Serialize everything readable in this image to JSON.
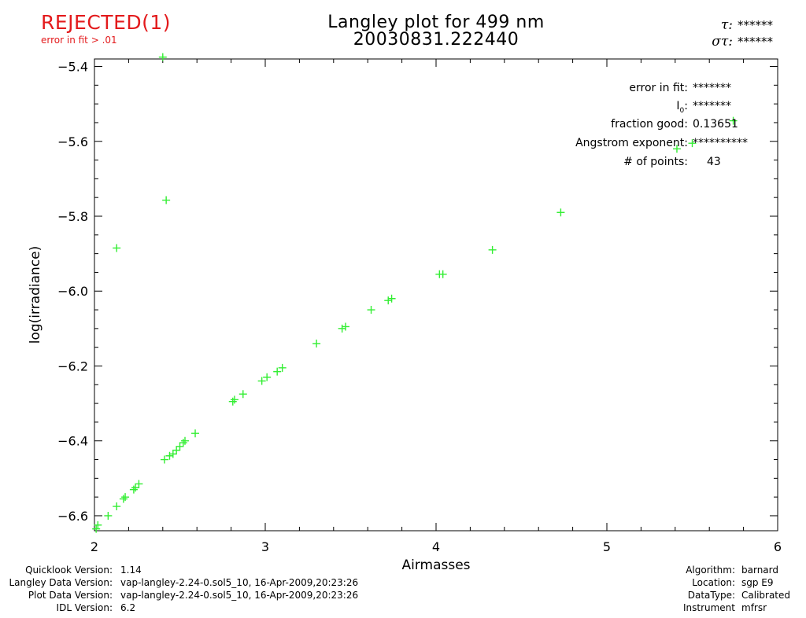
{
  "status": {
    "label": "REJECTED(1)",
    "reason": "error in fit > .01",
    "color": "#e31a1c"
  },
  "title": {
    "line1": "Langley plot for 499 nm",
    "line2": "20030831.222440"
  },
  "tau": {
    "tau_symbol": "τ:",
    "tau_value": "******",
    "sigma_symbol": "στ:",
    "sigma_value": "******"
  },
  "stats": [
    {
      "label": "error in fit:",
      "value": "*******"
    },
    {
      "label": "I0:",
      "value": "*******"
    },
    {
      "label": "fraction good:",
      "value": "0.13651"
    },
    {
      "label": "Angstrom exponent:",
      "value": "**********"
    },
    {
      "label": "# of points:",
      "value": "43"
    }
  ],
  "chart_data": {
    "type": "scatter",
    "title": "Langley plot for 499 nm",
    "subtitle": "20030831.222440",
    "xlabel": "Airmasses",
    "ylabel": "log(irradiance)",
    "xlim": [
      2,
      6
    ],
    "ylim": [
      -6.64,
      -5.38
    ],
    "x_ticks": [
      2,
      3,
      4,
      5,
      6
    ],
    "x_tick_labels": [
      "2",
      "3",
      "4",
      "5",
      "6"
    ],
    "y_ticks": [
      -6.6,
      -6.4,
      -6.2,
      -6.0,
      -5.8,
      -5.6,
      -5.4
    ],
    "y_tick_labels": [
      "−6.6",
      "−6.4",
      "−6.2",
      "−6.0",
      "−5.8",
      "−5.6",
      "−5.4"
    ],
    "marker": "+",
    "marker_color": "#33ee33",
    "grid": false,
    "series": [
      {
        "points": [
          [
            2.01,
            -6.635
          ],
          [
            2.02,
            -6.625
          ],
          [
            2.08,
            -6.6
          ],
          [
            2.13,
            -6.575
          ],
          [
            2.17,
            -6.555
          ],
          [
            2.18,
            -6.55
          ],
          [
            2.23,
            -6.53
          ],
          [
            2.24,
            -6.525
          ],
          [
            2.26,
            -6.515
          ],
          [
            2.13,
            -5.885
          ],
          [
            2.4,
            -5.375
          ],
          [
            2.41,
            -6.45
          ],
          [
            2.44,
            -6.44
          ],
          [
            2.46,
            -6.435
          ],
          [
            2.48,
            -6.425
          ],
          [
            2.5,
            -6.415
          ],
          [
            2.52,
            -6.405
          ],
          [
            2.53,
            -6.4
          ],
          [
            2.42,
            -5.757
          ],
          [
            2.59,
            -6.38
          ],
          [
            2.81,
            -6.295
          ],
          [
            2.82,
            -6.29
          ],
          [
            2.87,
            -6.275
          ],
          [
            2.98,
            -6.24
          ],
          [
            3.01,
            -6.23
          ],
          [
            3.07,
            -6.215
          ],
          [
            3.1,
            -6.205
          ],
          [
            3.3,
            -6.14
          ],
          [
            3.45,
            -6.1
          ],
          [
            3.47,
            -6.095
          ],
          [
            3.62,
            -6.05
          ],
          [
            3.72,
            -6.025
          ],
          [
            3.74,
            -6.02
          ],
          [
            4.02,
            -5.955
          ],
          [
            4.04,
            -5.955
          ],
          [
            4.33,
            -5.89
          ],
          [
            4.73,
            -5.79
          ],
          [
            5.41,
            -5.62
          ],
          [
            5.5,
            -5.605
          ],
          [
            5.74,
            -5.545
          ]
        ]
      }
    ]
  },
  "footer_left": [
    {
      "key": "Quicklook Version:",
      "value": "1.14"
    },
    {
      "key": "Langley Data Version:",
      "value": "vap-langley-2.24-0.sol5_10, 16-Apr-2009,20:23:26"
    },
    {
      "key": "Plot Data Version:",
      "value": "vap-langley-2.24-0.sol5_10, 16-Apr-2009,20:23:26"
    },
    {
      "key": "IDL Version:",
      "value": "6.2"
    }
  ],
  "footer_right": [
    {
      "key": "Algorithm:",
      "value": "barnard"
    },
    {
      "key": "Location:",
      "value": "sgp E9"
    },
    {
      "key": "DataType:",
      "value": "Calibrated"
    },
    {
      "key": "Instrument",
      "value": "mfrsr"
    }
  ]
}
